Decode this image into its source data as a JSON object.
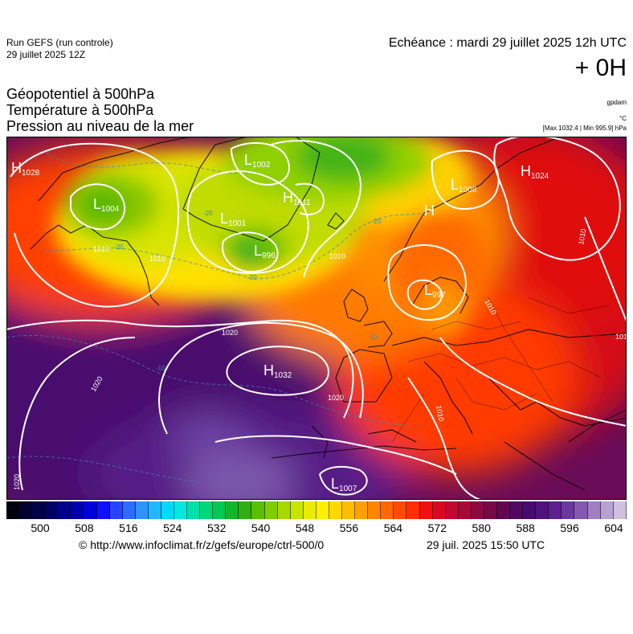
{
  "header": {
    "run_title": "Run GEFS (run controle)",
    "run_date": "29 juillet 2025 12Z",
    "echeance": "Echéance : mardi 29 juillet 2025 12h UTC",
    "offset": "+ 0H"
  },
  "layers": {
    "geopotential": "Géopotentiel à 500hPa",
    "temperature": "Température à 500hPa",
    "pressure": "Pression au niveau de la mer"
  },
  "units": {
    "geopotential": "gpdam",
    "temperature": "°C",
    "pressure_range": "[Max 1032.4 | Min 995.9] hPa"
  },
  "pressure_centers": [
    {
      "type": "H",
      "value": "1028"
    },
    {
      "type": "L",
      "value": "1004"
    },
    {
      "type": "L",
      "value": "1002"
    },
    {
      "type": "H",
      "value": "1011"
    },
    {
      "type": "L",
      "value": "1001"
    },
    {
      "type": "L",
      "value": "996"
    },
    {
      "type": "L",
      "value": "1008"
    },
    {
      "type": "H",
      "value": "1024"
    },
    {
      "type": "H",
      "value": ""
    },
    {
      "type": "L",
      "value": "997"
    },
    {
      "type": "H",
      "value": "1032"
    },
    {
      "type": "L",
      "value": "1007"
    }
  ],
  "isobar_labels": [
    "1010",
    "1010",
    "1010",
    "1010",
    "1010",
    "1010",
    "1020",
    "1020",
    "1020",
    "1020",
    "1010"
  ],
  "temperature_labels": [
    "-20",
    "-20",
    "-20",
    "-20",
    "-10",
    "-10"
  ],
  "colorbar": {
    "ticks": [
      "500",
      "508",
      "516",
      "524",
      "532",
      "540",
      "548",
      "556",
      "564",
      "572",
      "580",
      "588",
      "596",
      "604"
    ],
    "colors": [
      "#000010",
      "#00002e",
      "#00004a",
      "#000068",
      "#00008a",
      "#0000b0",
      "#0000d8",
      "#1010ff",
      "#2844ff",
      "#2c6cff",
      "#2c94ff",
      "#20b8ff",
      "#00d8ff",
      "#00e8e0",
      "#00e0a8",
      "#00d878",
      "#00c850",
      "#10b828",
      "#30b010",
      "#58c000",
      "#80cc00",
      "#a8d800",
      "#c8e400",
      "#e8ec00",
      "#fff000",
      "#ffd800",
      "#ffbc00",
      "#ffa000",
      "#ff8400",
      "#ff6800",
      "#ff4c00",
      "#ff3000",
      "#f01010",
      "#d80820",
      "#c00830",
      "#a80838",
      "#900840",
      "#780848",
      "#600850",
      "#500860",
      "#480a70",
      "#501080",
      "#5c2090",
      "#6c38a0",
      "#8458b0",
      "#a080c0",
      "#b8a0d0",
      "#d0c0e0"
    ]
  },
  "footer": {
    "source": "© http://www.infoclimat.fr/z/gefs/europe/ctrl-500/0",
    "generated": "29 juil. 2025 15:50 UTC"
  }
}
